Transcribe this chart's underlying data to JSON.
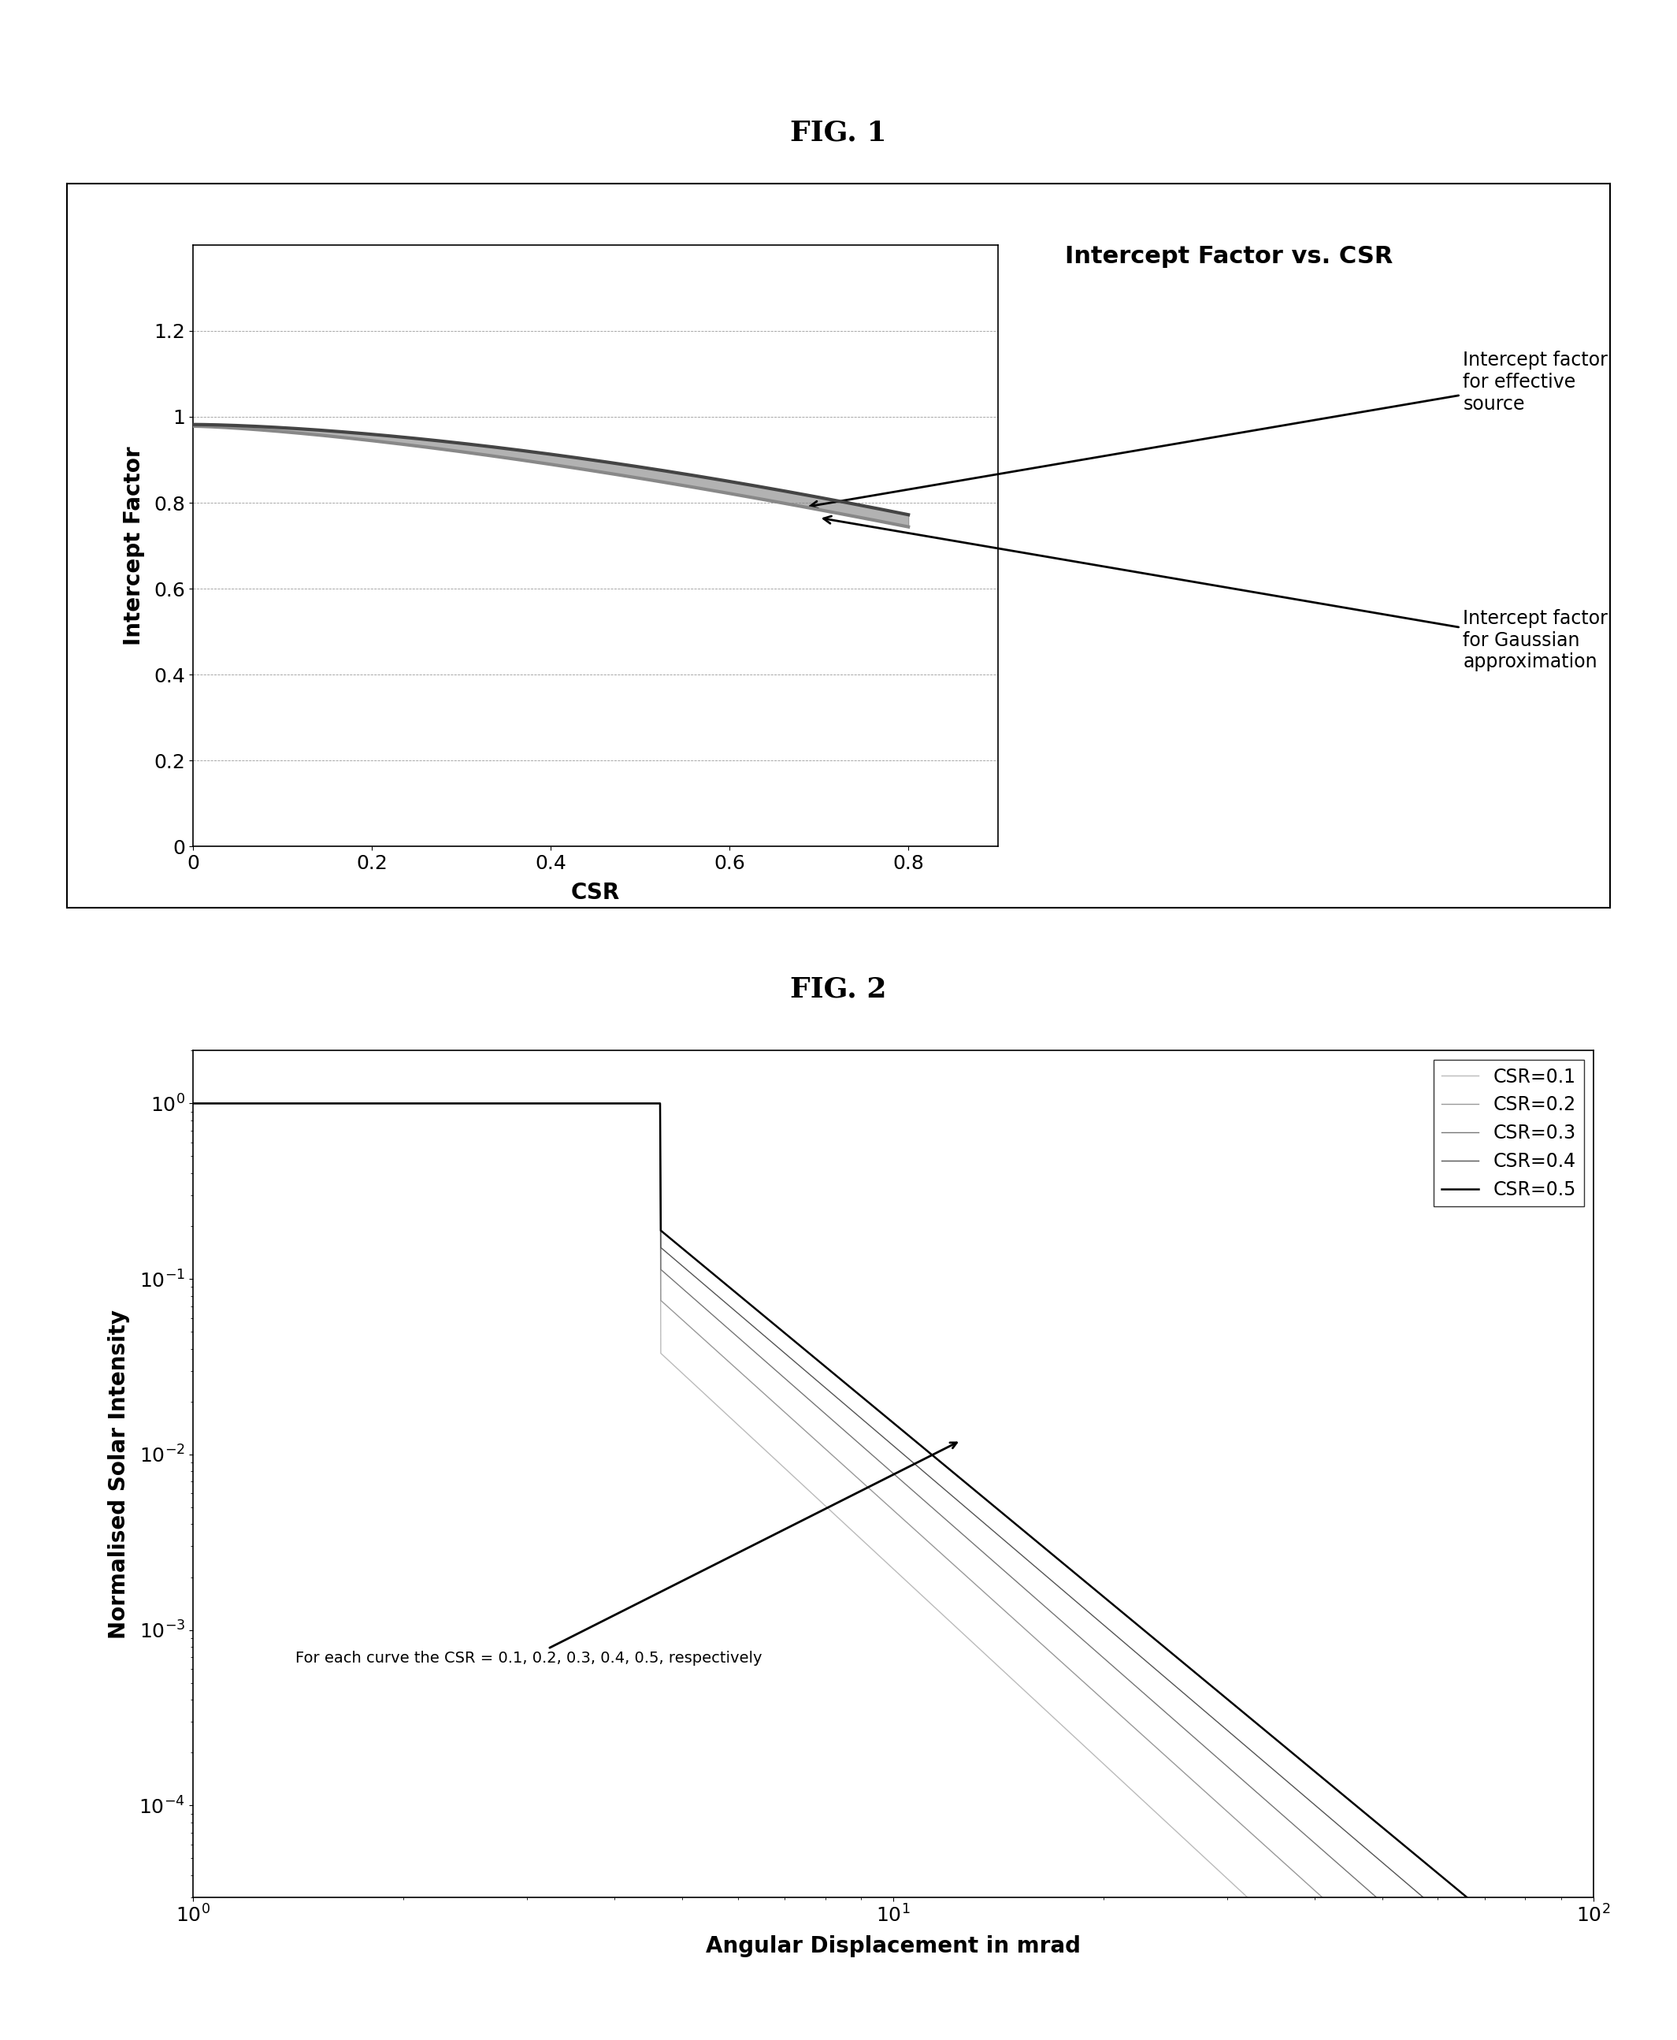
{
  "fig1_title": "FIG. 1",
  "fig2_title": "FIG. 2",
  "fig1_plot_title": "Intercept Factor vs. CSR",
  "fig1_xlabel": "CSR",
  "fig1_ylabel": "Intercept Factor",
  "fig1_xlim": [
    0,
    0.9
  ],
  "fig1_ylim": [
    0,
    1.4
  ],
  "fig1_xticks": [
    0,
    0.2,
    0.4,
    0.6,
    0.8
  ],
  "fig1_yticks": [
    0,
    0.2,
    0.4,
    0.6,
    0.8,
    1.0,
    1.2
  ],
  "fig1_xticklabels": [
    "0",
    "0.2",
    "0.4",
    "0.6",
    "0.8"
  ],
  "fig1_yticklabels": [
    "0",
    "0.2",
    "0.4",
    "0.6",
    "0.8",
    "1",
    "1.2"
  ],
  "fig1_annotation1": "Intercept factor\nfor effective\nsource",
  "fig1_annotation2": "Intercept factor\nfor Gaussian\napproximation",
  "fig2_xlabel": "Angular Displacement in mrad",
  "fig2_ylabel": "Normalised Solar Intensity",
  "fig2_annotation": "For each curve the CSR = 0.1, 0.2, 0.3, 0.4, 0.5, respectively",
  "fig2_legend_labels": [
    "CSR=0.1",
    "CSR=0.2",
    "CSR=0.3",
    "CSR=0.4",
    "CSR=0.5"
  ],
  "fig2_line_colors": [
    "#bbbbbb",
    "#999999",
    "#777777",
    "#555555",
    "#000000"
  ],
  "fig2_line_widths": [
    1.0,
    1.0,
    1.0,
    1.0,
    1.8
  ],
  "background_color": "#ffffff"
}
